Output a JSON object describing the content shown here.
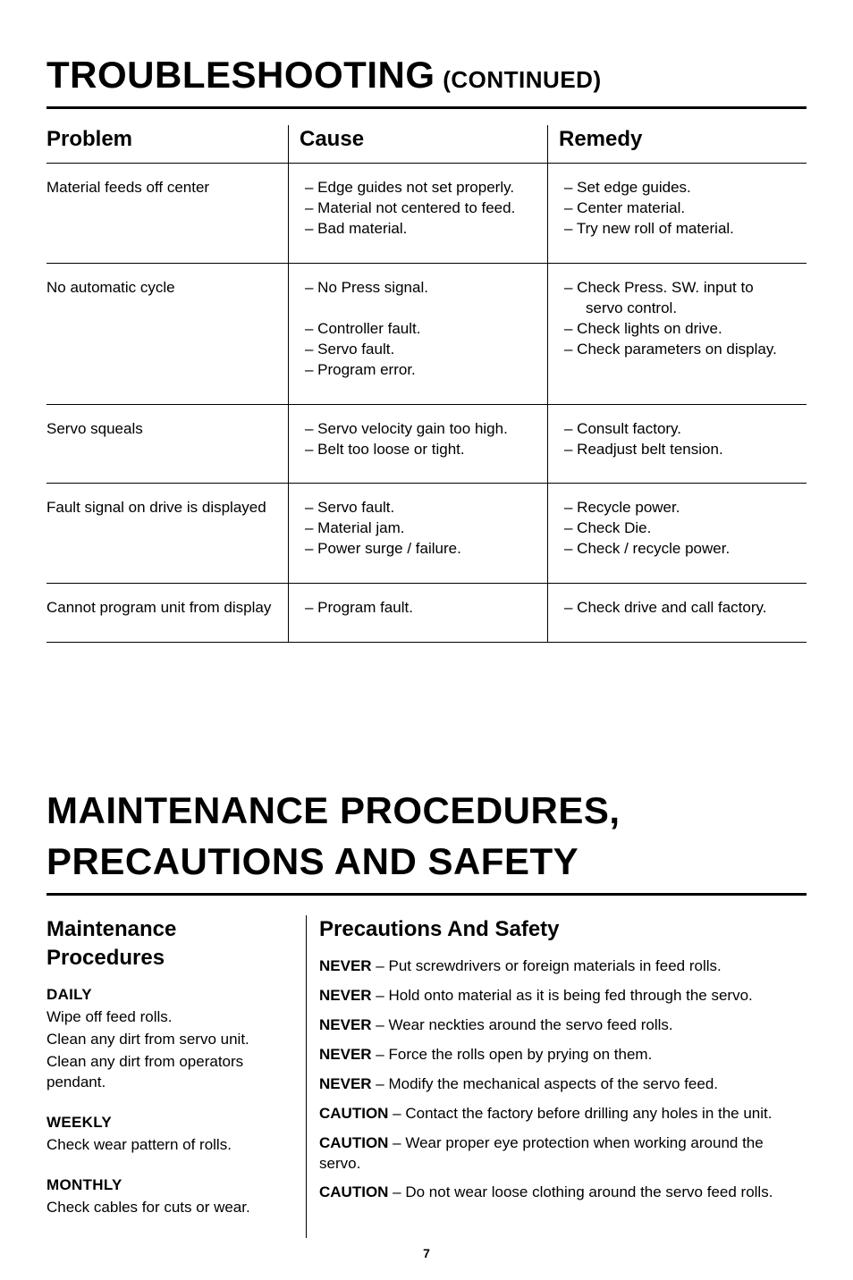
{
  "colors": {
    "background": "#ffffff",
    "text": "#000000",
    "rule": "#000000"
  },
  "page_number": "7",
  "troubleshooting": {
    "title_main": "TROUBLESHOOTING",
    "title_sub": "(CONTINUED)",
    "columns": [
      "Problem",
      "Cause",
      "Remedy"
    ],
    "rows": [
      {
        "problem": "Material feeds off center",
        "cause": [
          "– Edge guides not set properly.",
          "– Material not centered to feed.",
          "– Bad material."
        ],
        "remedy": [
          "– Set edge guides.",
          "– Center material.",
          "– Try new roll of material."
        ]
      },
      {
        "problem": "No automatic cycle",
        "cause": [
          "– No Press signal.",
          "",
          "– Controller fault.",
          "– Servo fault.",
          "– Program error."
        ],
        "remedy_nested": [
          {
            "text": "– Check Press. SW. input to",
            "sub": "servo control."
          },
          {
            "text": "– Check lights on drive."
          },
          {
            "text": "– Check parameters on display."
          }
        ]
      },
      {
        "problem": "Servo squeals",
        "cause": [
          "– Servo velocity gain too high.",
          "– Belt too loose or tight."
        ],
        "remedy": [
          "– Consult factory.",
          "– Readjust belt tension."
        ]
      },
      {
        "problem": "Fault signal on drive is displayed",
        "cause": [
          "– Servo fault.",
          "– Material jam.",
          "– Power surge / failure."
        ],
        "remedy": [
          "– Recycle power.",
          "– Check Die.",
          "– Check / recycle power."
        ]
      },
      {
        "problem": "Cannot program unit from display",
        "cause": [
          "– Program fault."
        ],
        "remedy": [
          "– Check drive and call factory."
        ]
      }
    ]
  },
  "maintenance": {
    "title": "MAINTENANCE PROCEDURES, PRECAUTIONS AND SAFETY",
    "procedures_heading": "Maintenance Procedures",
    "safety_heading": "Precautions And Safety",
    "procedures": [
      {
        "label": "DAILY",
        "lines": [
          "Wipe off feed rolls.",
          "Clean any dirt from servo unit.",
          "Clean any dirt from operators pendant."
        ]
      },
      {
        "label": "WEEKLY",
        "lines": [
          "Check wear pattern of rolls."
        ]
      },
      {
        "label": "MONTHLY",
        "lines": [
          "Check cables for cuts or wear."
        ]
      }
    ],
    "safety": [
      {
        "lead": "NEVER",
        "text": " – Put screwdrivers or foreign materials in feed rolls."
      },
      {
        "lead": "NEVER",
        "text": " – Hold onto material as it is being fed through the servo."
      },
      {
        "lead": "NEVER",
        "text": " – Wear neckties around the servo feed rolls."
      },
      {
        "lead": "NEVER",
        "text": " – Force the rolls open by prying on them."
      },
      {
        "lead": "NEVER",
        "text": " – Modify the mechanical aspects of the servo feed."
      },
      {
        "lead": "CAUTION",
        "text": " – Contact the factory before drilling any holes in the unit."
      },
      {
        "lead": "CAUTION",
        "text": " – Wear proper eye protection when working around the servo."
      },
      {
        "lead": "CAUTION",
        "text": " – Do not wear loose clothing around the servo feed rolls."
      }
    ]
  }
}
